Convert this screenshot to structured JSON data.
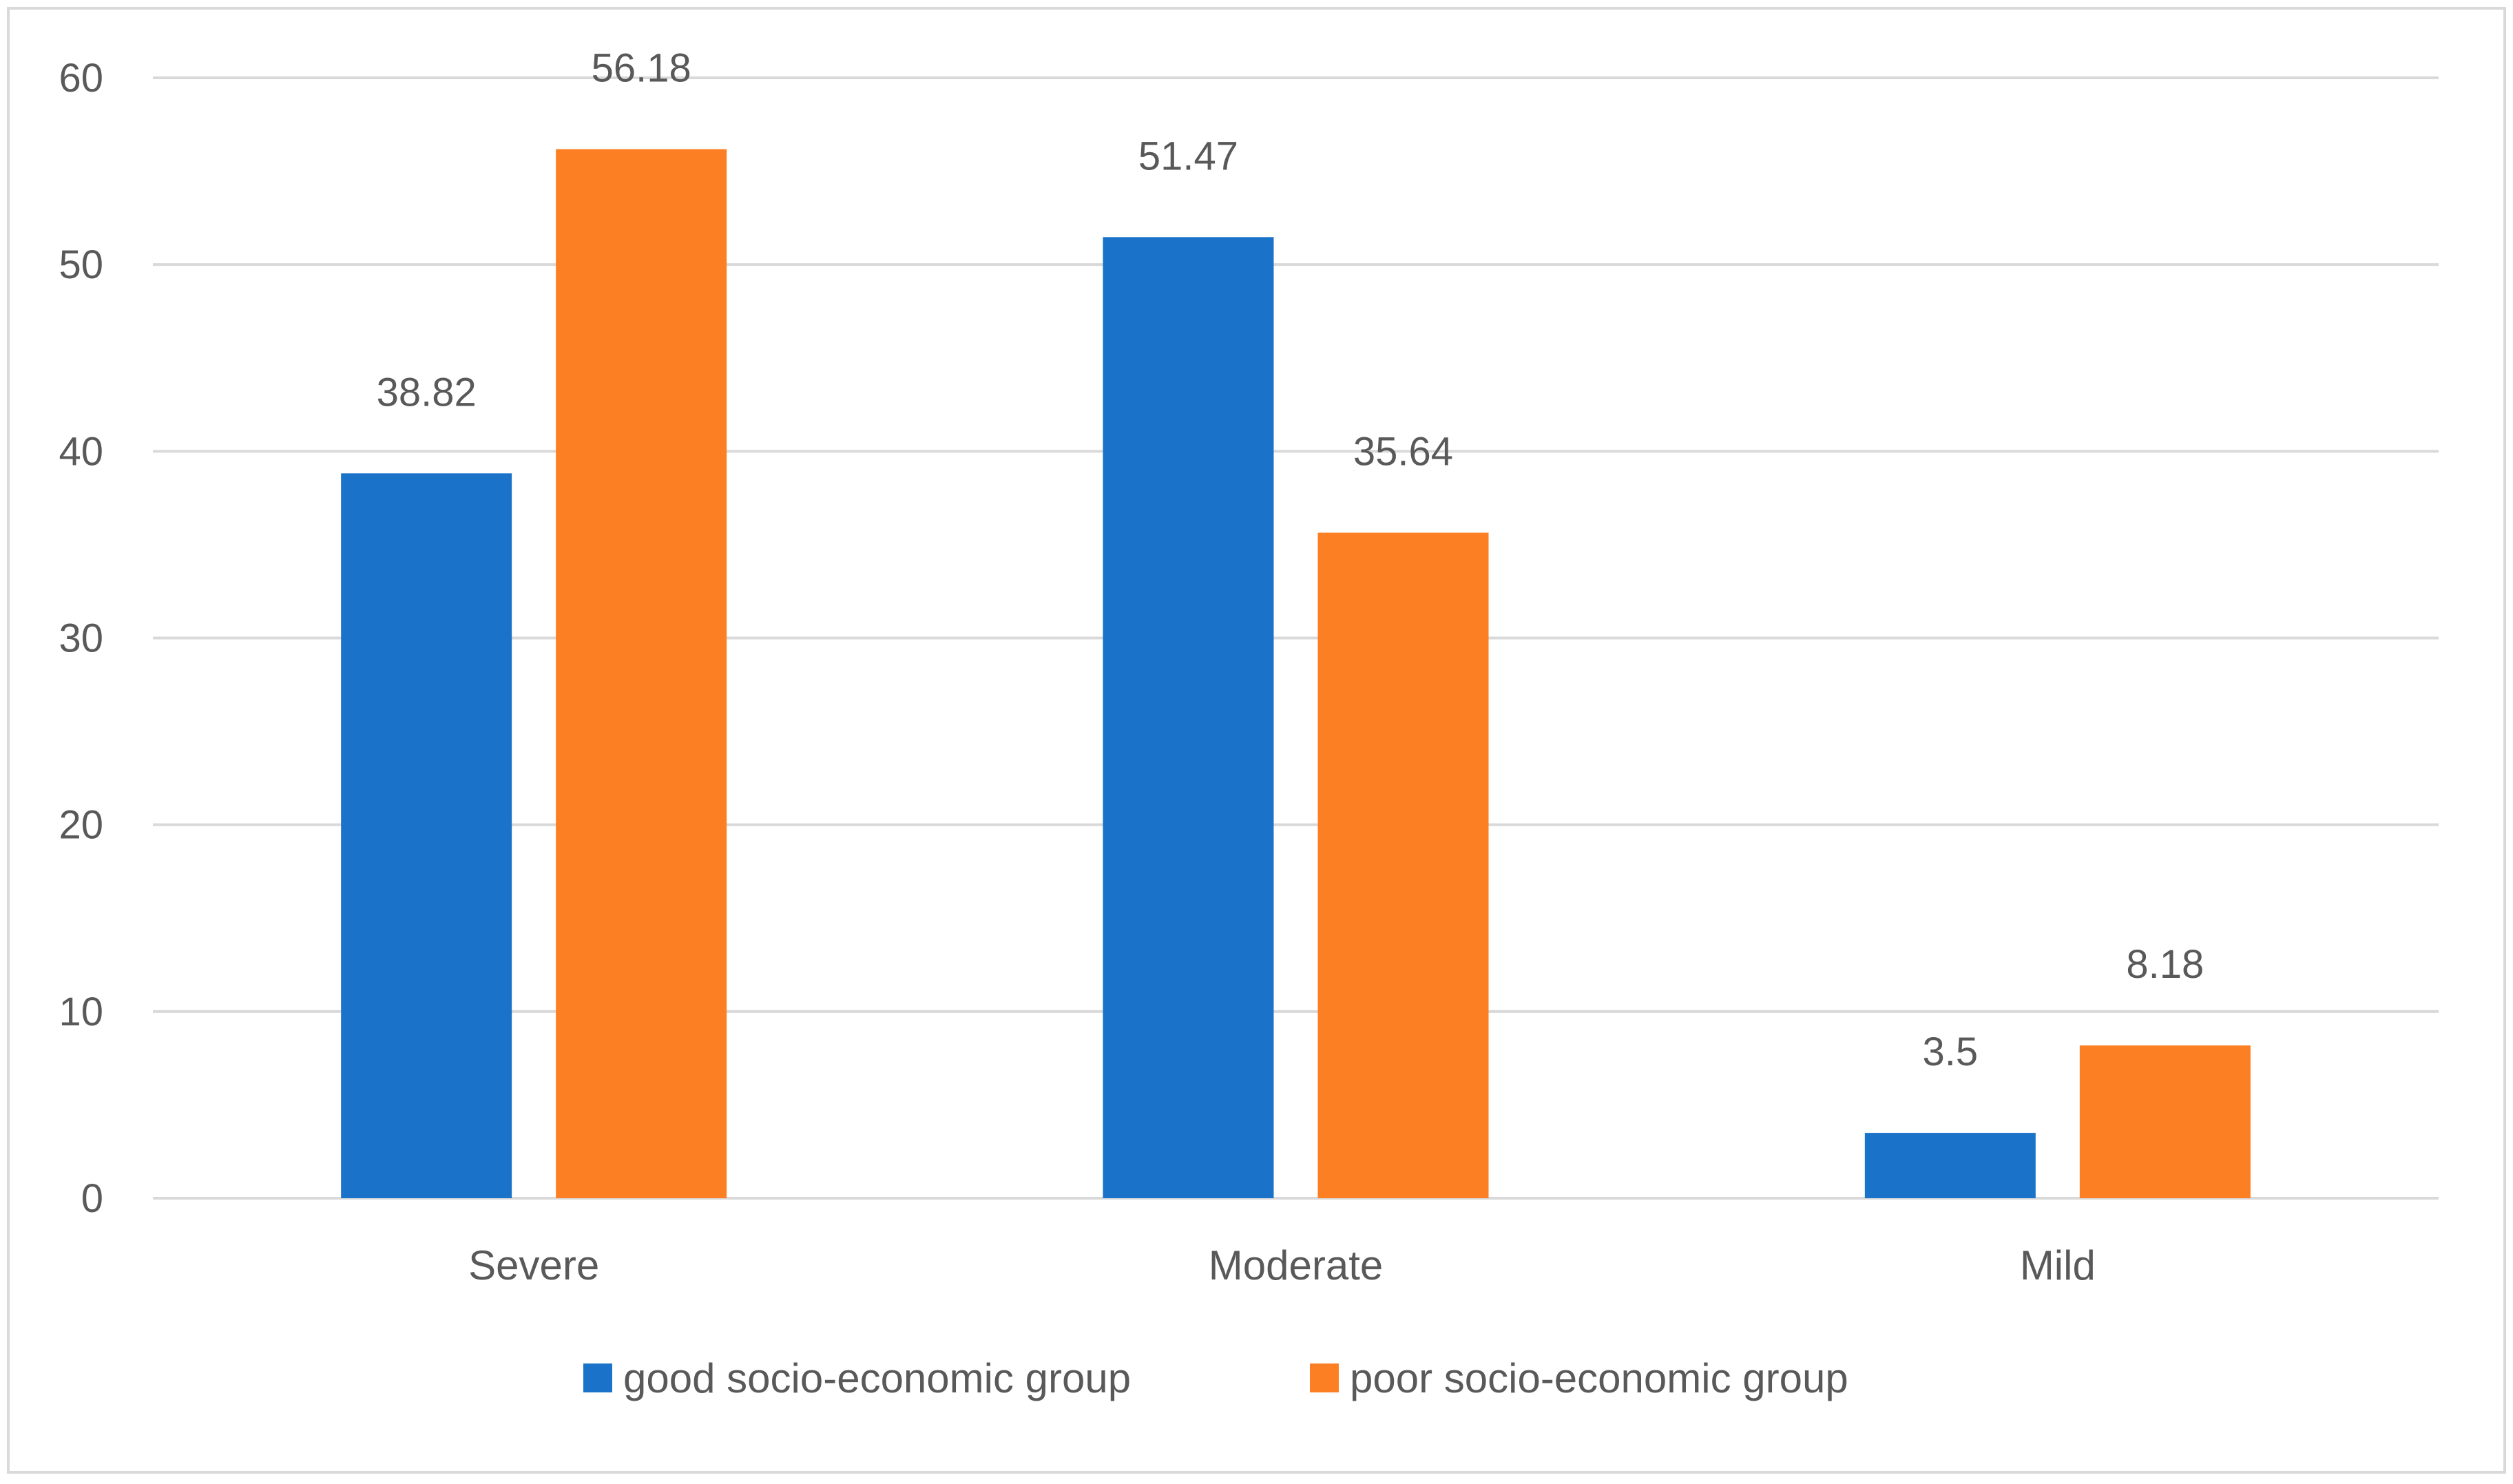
{
  "chart_data": {
    "type": "bar",
    "title": "",
    "xlabel": "",
    "ylabel": "",
    "categories": [
      "Severe",
      "Moderate",
      "Mild"
    ],
    "series": [
      {
        "name": "good socio-economic group",
        "values": [
          38.82,
          51.47,
          3.5
        ],
        "labels": [
          "38.82",
          "51.47",
          "3.5"
        ],
        "color": "#1a73c9"
      },
      {
        "name": "poor socio-economic group",
        "values": [
          56.18,
          35.64,
          8.18
        ],
        "labels": [
          "56.18",
          "35.64",
          "8.18"
        ],
        "color": "#fd7f24"
      }
    ],
    "ylim": [
      0,
      60
    ],
    "yticks": [
      0,
      10,
      20,
      30,
      40,
      50,
      60
    ],
    "ytick_labels": [
      "0",
      "10",
      "20",
      "30",
      "40",
      "50",
      "60"
    ],
    "grid": true,
    "legend_position": "bottom",
    "colors": {
      "gridline": "#d9d9d9",
      "text": "#595959",
      "border": "#d9d9d9"
    }
  }
}
